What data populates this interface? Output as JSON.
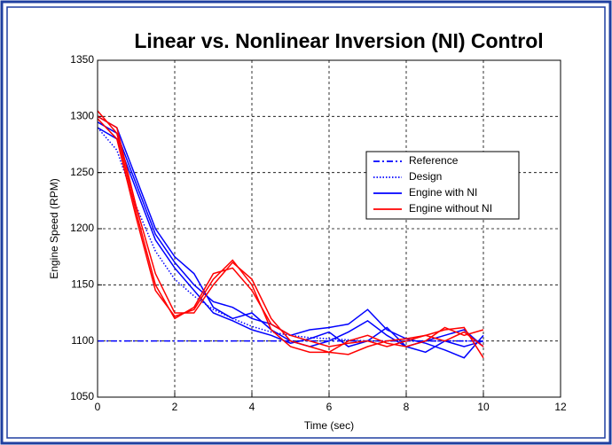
{
  "chart_data": {
    "type": "line",
    "title": "Linear vs. Nonlinear Inversion (NI)  Control",
    "x_label": "Time (sec)",
    "y_label": "Engine Speed (RPM)",
    "x": [
      0,
      0.5,
      1,
      1.5,
      2,
      2.5,
      3,
      3.5,
      4,
      4.5,
      5,
      5.5,
      6,
      6.5,
      7,
      7.5,
      8,
      8.5,
      9,
      9.5,
      10
    ],
    "xlim": [
      0,
      12
    ],
    "xticks": [
      0,
      2,
      4,
      6,
      8,
      10,
      12
    ],
    "ylim": [
      1050,
      1350
    ],
    "yticks": [
      1050,
      1100,
      1150,
      1200,
      1250,
      1300,
      1350
    ],
    "grid": true,
    "legend": "upper right",
    "series": [
      {
        "name": "Reference",
        "color": "#0000ff",
        "style": "dashdot",
        "runs": [
          [
            1100,
            1100,
            1100,
            1100,
            1100,
            1100,
            1100,
            1100,
            1100,
            1100,
            1100,
            1100,
            1100,
            1100,
            1100,
            1100,
            1100,
            1100,
            1100,
            1100,
            1100
          ]
        ]
      },
      {
        "name": "Design",
        "color": "#0000ff",
        "style": "dotted",
        "runs": [
          [
            1290,
            1270,
            1220,
            1180,
            1155,
            1140,
            1128,
            1120,
            1113,
            1108,
            1105,
            1103,
            1102,
            1101,
            1100,
            1100,
            1100,
            1100,
            1100,
            1100,
            1100
          ]
        ]
      },
      {
        "name": "Engine with NI",
        "color": "#0000ff",
        "style": "solid",
        "runs": [
          [
            1300,
            1290,
            1245,
            1200,
            1175,
            1160,
            1130,
            1120,
            1125,
            1110,
            1100,
            1095,
            1100,
            1108,
            1118,
            1105,
            1095,
            1090,
            1100,
            1095,
            1100
          ],
          [
            1295,
            1285,
            1240,
            1195,
            1170,
            1150,
            1135,
            1130,
            1120,
            1115,
            1105,
            1110,
            1112,
            1115,
            1128,
            1110,
            1102,
            1098,
            1092,
            1085,
            1105
          ],
          [
            1290,
            1280,
            1235,
            1190,
            1165,
            1145,
            1125,
            1118,
            1110,
            1105,
            1098,
            1102,
            1108,
            1095,
            1100,
            1112,
            1095,
            1100,
            1105,
            1110,
            1095
          ]
        ]
      },
      {
        "name": "Engine without NI",
        "color": "#ff0000",
        "style": "solid",
        "runs": [
          [
            1300,
            1290,
            1220,
            1160,
            1125,
            1125,
            1150,
            1170,
            1155,
            1120,
            1100,
            1095,
            1090,
            1088,
            1095,
            1100,
            1102,
            1105,
            1110,
            1112,
            1085
          ],
          [
            1305,
            1285,
            1215,
            1150,
            1120,
            1130,
            1160,
            1165,
            1145,
            1115,
            1105,
            1100,
            1095,
            1098,
            1100,
            1095,
            1100,
            1105,
            1100,
            1108,
            1095
          ],
          [
            1298,
            1280,
            1210,
            1145,
            1122,
            1128,
            1155,
            1172,
            1150,
            1110,
            1095,
            1090,
            1090,
            1100,
            1105,
            1098,
            1095,
            1100,
            1112,
            1105,
            1110
          ]
        ]
      }
    ]
  }
}
